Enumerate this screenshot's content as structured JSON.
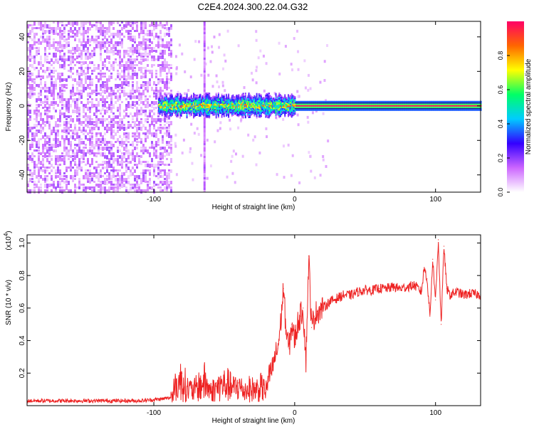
{
  "figure": {
    "title": "C2E4.2024.300.22.04.G32"
  },
  "chart_data": [
    {
      "type": "heatmap",
      "xlabel": "Height of straight line (km)",
      "ylabel": "Frequency (Hz)",
      "xlim": [
        -190,
        132
      ],
      "ylim": [
        -50,
        49
      ],
      "xticks": [
        -100,
        0,
        100
      ],
      "xtick_labels": [
        "-100",
        "0",
        "100"
      ],
      "yticks": [
        40,
        20,
        0,
        -20,
        -40
      ],
      "ytick_labels": [
        "40",
        "20",
        "0",
        "-20",
        "-40"
      ],
      "colorbar": {
        "label": "Normalized spectral amplitude",
        "range": [
          0,
          1
        ],
        "ticks": [
          0.0,
          0.2,
          0.4,
          0.6,
          0.8
        ],
        "tick_labels": [
          "0.0",
          "0.2",
          "0.4",
          "0.6",
          "0.8"
        ],
        "colors": [
          "#ffffff",
          "#cc66ff",
          "#3300ff",
          "#00ccff",
          "#00ff66",
          "#ffff00",
          "#ff6600",
          "#ff0066"
        ]
      },
      "features": {
        "noise_region_x": [
          -190,
          -87
        ],
        "noise_amplitude": 0.15,
        "carrier_frequency": 0,
        "carrier_start_x": -97,
        "stripe_x": -64
      },
      "grid": false
    },
    {
      "type": "line",
      "xlabel": "Height of straight line (km)",
      "ylabel": "SNR (10 * v/v)",
      "yscale_label": "(x10",
      "yscale_exponent": "4",
      "yscale_suffix": ")",
      "xlim": [
        -190,
        132
      ],
      "ylim": [
        0,
        1.05
      ],
      "xticks": [
        -100,
        0,
        100
      ],
      "xtick_labels": [
        "-100",
        "0",
        "100"
      ],
      "yticks": [
        0.2,
        0.4,
        0.6,
        0.8,
        1.0
      ],
      "ytick_labels": [
        "0.2",
        "0.4",
        "0.6",
        "0.8",
        "1.0"
      ],
      "color": "#ee2222",
      "series": [
        {
          "name": "",
          "x": [
            -190,
            -170,
            -150,
            -130,
            -110,
            -95,
            -88,
            -84,
            -80,
            -76,
            -72,
            -68,
            -64,
            -60,
            -56,
            -52,
            -48,
            -44,
            -40,
            -36,
            -32,
            -28,
            -24,
            -20,
            -18,
            -16,
            -14,
            -12,
            -10,
            -8,
            -6,
            -4,
            -2,
            0,
            2,
            4,
            6,
            8,
            10,
            12,
            14,
            16,
            20,
            25,
            30,
            35,
            40,
            45,
            50,
            55,
            60,
            65,
            70,
            75,
            80,
            85,
            90,
            92,
            94,
            96,
            98,
            100,
            102,
            104,
            106,
            108,
            110,
            115,
            120,
            125,
            132
          ],
          "y": [
            0.03,
            0.03,
            0.03,
            0.03,
            0.03,
            0.04,
            0.05,
            0.15,
            0.2,
            0.12,
            0.1,
            0.14,
            0.18,
            0.1,
            0.12,
            0.15,
            0.16,
            0.12,
            0.14,
            0.1,
            0.12,
            0.11,
            0.13,
            0.1,
            0.18,
            0.22,
            0.3,
            0.35,
            0.5,
            0.72,
            0.45,
            0.35,
            0.5,
            0.4,
            0.5,
            0.55,
            0.6,
            0.28,
            0.92,
            0.48,
            0.55,
            0.58,
            0.6,
            0.64,
            0.66,
            0.68,
            0.68,
            0.7,
            0.71,
            0.71,
            0.72,
            0.72,
            0.73,
            0.72,
            0.73,
            0.74,
            0.7,
            0.85,
            0.78,
            0.55,
            0.9,
            0.65,
            1.02,
            0.5,
            0.98,
            0.72,
            0.68,
            0.7,
            0.68,
            0.69,
            0.68
          ]
        }
      ],
      "grid": false
    }
  ]
}
